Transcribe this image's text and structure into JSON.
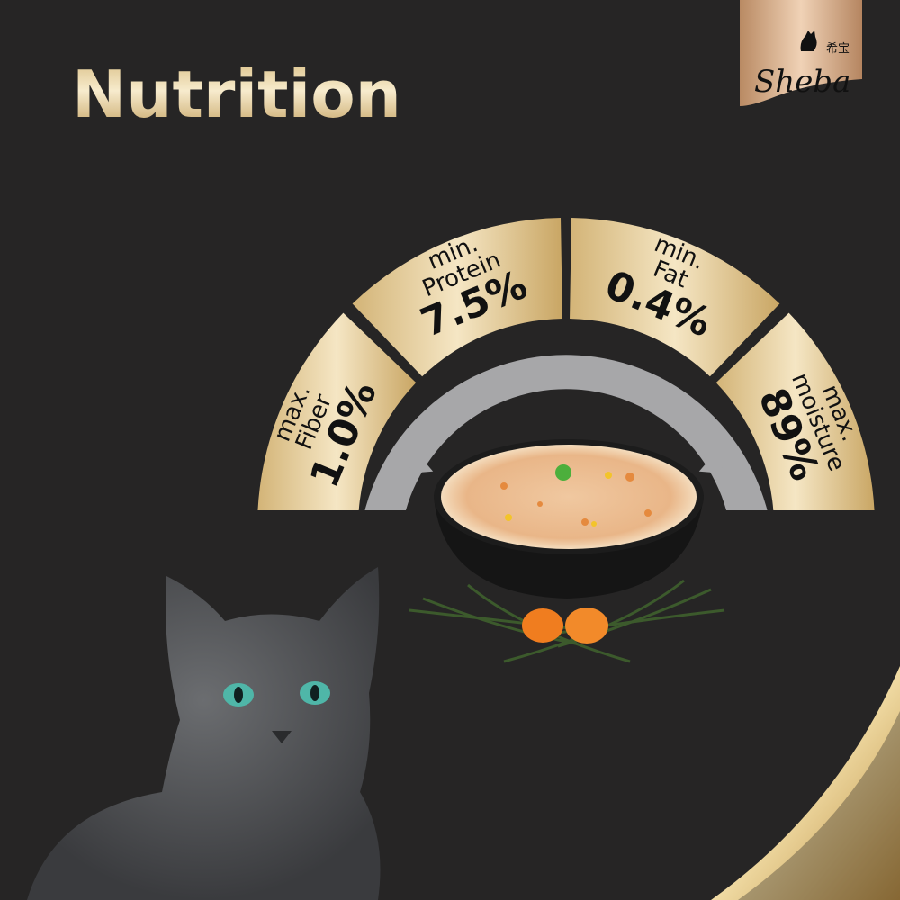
{
  "title": "Nutrition",
  "brand": {
    "name": "Sheba",
    "chinese_name": "希宝"
  },
  "colors": {
    "background": "#262525",
    "gold_light": "#f7ebcd",
    "gold_dark": "#c4a160",
    "band_grey": "#a7a7a9",
    "text": "#111111"
  },
  "nutrients": [
    {
      "qualifier": "max.",
      "name": "Fiber",
      "value": "1.0%"
    },
    {
      "qualifier": "min.",
      "name": "Protein",
      "value": "7.5%"
    },
    {
      "qualifier": "min.",
      "name": "Fat",
      "value": "0.4%"
    },
    {
      "qualifier": "max.",
      "name": "moisture",
      "value": "89%"
    }
  ]
}
